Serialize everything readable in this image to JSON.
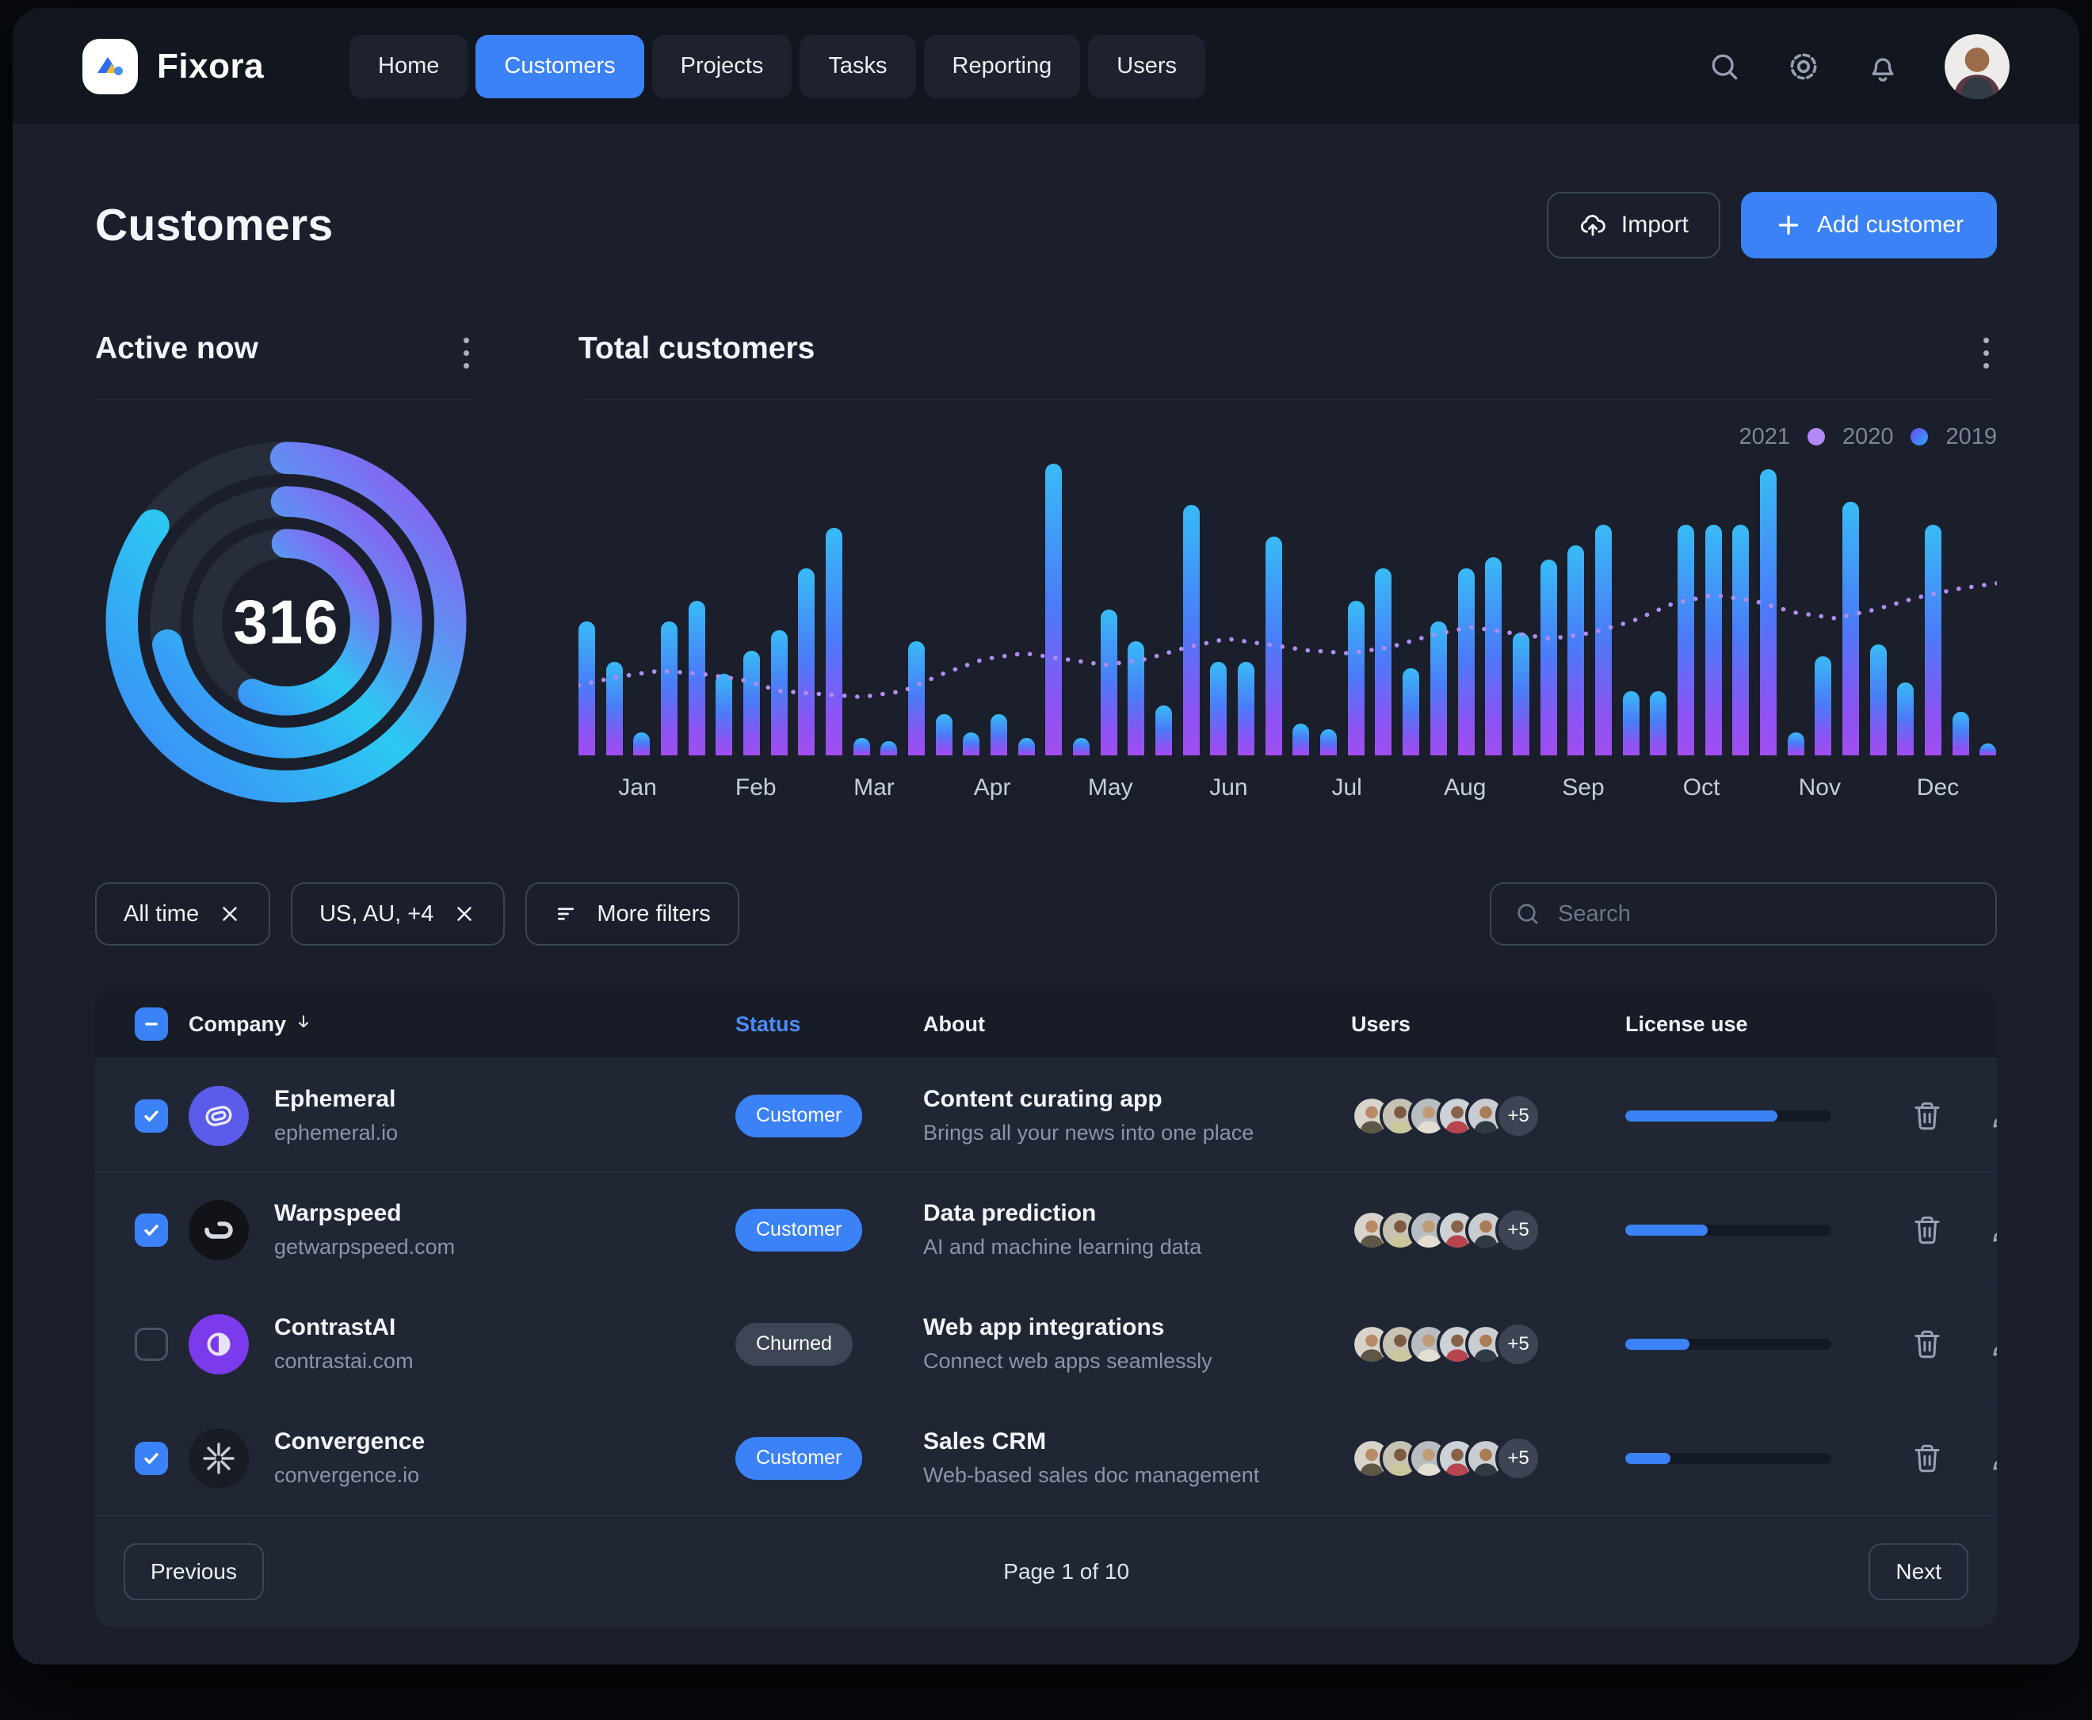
{
  "brand": {
    "name": "Fixora"
  },
  "nav": {
    "items": [
      {
        "label": "Home",
        "active": false
      },
      {
        "label": "Customers",
        "active": true
      },
      {
        "label": "Projects",
        "active": false
      },
      {
        "label": "Tasks",
        "active": false
      },
      {
        "label": "Reporting",
        "active": false
      },
      {
        "label": "Users",
        "active": false
      }
    ]
  },
  "icons": {
    "top_right": [
      "search-icon",
      "gear-icon",
      "bell-icon"
    ],
    "import": "cloud-upload-icon",
    "add": "plus-icon",
    "card_menu": "kebab-vertical-icon",
    "chip_remove": "x-icon",
    "more_filters": "filter-lines-icon",
    "row_delete": "trash-icon",
    "row_edit": "pencil-icon",
    "sort": "arrow-down-icon"
  },
  "header": {
    "title": "Customers",
    "import_label": "Import",
    "add_customer_label": "Add customer"
  },
  "active_now": {
    "title": "Active now",
    "value": "316"
  },
  "total_customers": {
    "title": "Total customers"
  },
  "chart_data": [
    {
      "type": "donut",
      "title": "Active now",
      "center_value": 316,
      "rings": [
        {
          "name": "outer",
          "percent": 85
        },
        {
          "name": "middle",
          "percent": 72
        },
        {
          "name": "inner",
          "percent": 57
        }
      ],
      "gradient": [
        "#3e86f7",
        "#2cc9f2",
        "#9b4df2"
      ],
      "track_color": "#272d3b"
    },
    {
      "type": "bar",
      "title": "Total customers",
      "legend_labels": [
        "2021",
        "2020",
        "2019"
      ],
      "legend_dot_colors": [
        "#b18af8",
        "linear-gradient(135deg,#7048f0,#2aa7f8)"
      ],
      "legend_position": "top-right",
      "categories": [
        "Jan",
        "Feb",
        "Mar",
        "Apr",
        "May",
        "Jun",
        "Jul",
        "Aug",
        "Sep",
        "Oct",
        "Nov",
        "Dec"
      ],
      "values_pct_of_max": [
        46,
        32,
        8,
        46,
        53,
        28,
        36,
        43,
        64,
        78,
        6,
        5,
        39,
        14,
        8,
        14,
        6,
        100,
        6,
        50,
        39,
        17,
        86,
        32,
        32,
        75,
        11,
        9,
        53,
        64,
        30,
        46,
        64,
        68,
        42,
        67,
        72,
        79,
        22,
        22,
        79,
        79,
        79,
        98,
        8,
        34,
        87,
        38,
        25,
        79,
        15,
        4
      ],
      "trend_pct_of_max": [
        24,
        27,
        29,
        28,
        26,
        22,
        21,
        20,
        22,
        28,
        33,
        35,
        33,
        31,
        33,
        37,
        40,
        38,
        36,
        35,
        37,
        41,
        44,
        42,
        40,
        42,
        46,
        52,
        55,
        53,
        49,
        47,
        50,
        54,
        57,
        59
      ],
      "ylim": [
        0,
        100
      ],
      "grid": false,
      "bar_gradient": [
        "#38bbf6",
        "#4a7cf7",
        "#a14ef0"
      ],
      "trend_color": "#b18cf0"
    }
  ],
  "filters": {
    "chips": [
      {
        "label": "All time",
        "removable": true
      },
      {
        "label": "US, AU, +4",
        "removable": true
      },
      {
        "label": "More filters",
        "removable": false
      }
    ],
    "search_placeholder": "Search"
  },
  "table": {
    "columns": [
      "Company",
      "Status",
      "About",
      "Users",
      "License use"
    ],
    "status_colors": {
      "Customer": "#3b82f6",
      "Churned": "#3e4554"
    },
    "rows": [
      {
        "selected": true,
        "company": "Ephemeral",
        "domain": "ephemeral.io",
        "logo": "link-loop",
        "logo_bg": "#5a5be8",
        "status": "Customer",
        "about_title": "Content curating app",
        "about_sub": "Brings all your news into one place",
        "extra_users": "+5",
        "license_pct": 74
      },
      {
        "selected": true,
        "company": "Warpspeed",
        "domain": "getwarpspeed.com",
        "logo": "warp-loop",
        "logo_bg": "#111318",
        "status": "Customer",
        "about_title": "Data prediction",
        "about_sub": "AI and machine learning data",
        "extra_users": "+5",
        "license_pct": 40
      },
      {
        "selected": false,
        "company": "ContrastAI",
        "domain": "contrastai.com",
        "logo": "contrast",
        "logo_bg": "#7c3aed",
        "status": "Churned",
        "about_title": "Web app integrations",
        "about_sub": "Connect web apps seamlessly",
        "extra_users": "+5",
        "license_pct": 31
      },
      {
        "selected": true,
        "company": "Convergence",
        "domain": "convergence.io",
        "logo": "asterisk",
        "logo_bg": "#181c24",
        "status": "Customer",
        "about_title": "Sales CRM",
        "about_sub": "Web-based sales doc management",
        "extra_users": "+5",
        "license_pct": 22
      }
    ],
    "pagination": {
      "previous": "Previous",
      "page_label": "Page 1 of 10",
      "next": "Next"
    }
  }
}
